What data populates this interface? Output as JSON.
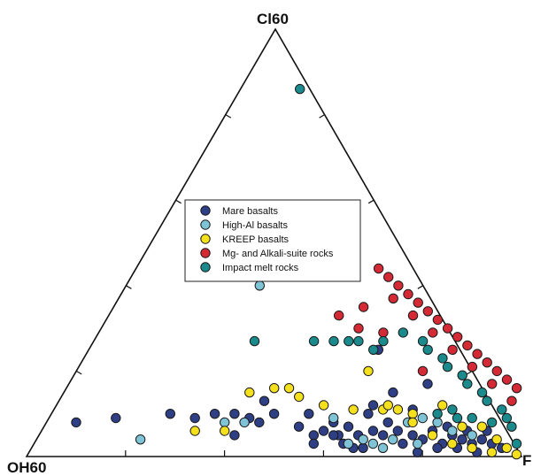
{
  "chart_data": {
    "type": "scatter",
    "subtype": "ternary",
    "vertices": {
      "top": "Cl60",
      "left": "OH60",
      "right": "F"
    },
    "legend_placement": "upper-center",
    "series": [
      {
        "name": "Mare basalts",
        "color": "#2e3f86",
        "points": [
          [
            0.1,
            0.08
          ],
          [
            0.18,
            0.09
          ],
          [
            0.29,
            0.1
          ],
          [
            0.34,
            0.09
          ],
          [
            0.38,
            0.1
          ],
          [
            0.42,
            0.1
          ],
          [
            0.45,
            0.09
          ],
          [
            0.5,
            0.1
          ],
          [
            0.42,
            0.05
          ],
          [
            0.47,
            0.08
          ],
          [
            0.48,
            0.13
          ],
          [
            0.55,
            0.07
          ],
          [
            0.58,
            0.05
          ],
          [
            0.6,
            0.06
          ],
          [
            0.62,
            0.08
          ],
          [
            0.63,
            0.05
          ],
          [
            0.65,
            0.07
          ],
          [
            0.67,
            0.05
          ],
          [
            0.7,
            0.06
          ],
          [
            0.72,
            0.05
          ],
          [
            0.73,
            0.08
          ],
          [
            0.75,
            0.06
          ],
          [
            0.78,
            0.05
          ],
          [
            0.8,
            0.04
          ],
          [
            0.82,
            0.06
          ],
          [
            0.84,
            0.03
          ],
          [
            0.86,
            0.05
          ],
          [
            0.88,
            0.04
          ],
          [
            0.9,
            0.03
          ],
          [
            0.92,
            0.04
          ],
          [
            0.94,
            0.03
          ],
          [
            0.96,
            0.02
          ],
          [
            0.76,
            0.03
          ],
          [
            0.79,
            0.01
          ],
          [
            0.83,
            0.02
          ],
          [
            0.87,
            0.02
          ],
          [
            0.91,
            0.01
          ],
          [
            0.58,
            0.03
          ],
          [
            0.64,
            0.03
          ],
          [
            0.68,
            0.02
          ],
          [
            0.7,
            0.12
          ],
          [
            0.74,
            0.15
          ],
          [
            0.78,
            0.11
          ],
          [
            0.81,
            0.17
          ],
          [
            0.71,
            0.25
          ],
          [
            0.62,
            0.05
          ],
          [
            0.66,
            0.02
          ],
          [
            0.85,
            0.07
          ],
          [
            0.89,
            0.06
          ],
          [
            0.93,
            0.06
          ],
          [
            0.69,
            0.1
          ],
          [
            0.57,
            0.1
          ]
        ]
      },
      {
        "name": "High-Al basalts",
        "color": "#7ec4d6",
        "points": [
          [
            0.23,
            0.04
          ],
          [
            0.4,
            0.08
          ],
          [
            0.44,
            0.08
          ],
          [
            0.62,
            0.09
          ],
          [
            0.65,
            0.03
          ],
          [
            0.68,
            0.04
          ],
          [
            0.7,
            0.03
          ],
          [
            0.72,
            0.02
          ],
          [
            0.74,
            0.04
          ],
          [
            0.77,
            0.08
          ],
          [
            0.8,
            0.09
          ],
          [
            0.83,
            0.08
          ],
          [
            0.86,
            0.06
          ],
          [
            0.9,
            0.05
          ],
          [
            0.47,
            0.4
          ],
          [
            0.79,
            0.03
          ]
        ]
      },
      {
        "name": "KREEP basalts",
        "color": "#f4e01c",
        "points": [
          [
            0.34,
            0.06
          ],
          [
            0.4,
            0.06
          ],
          [
            0.45,
            0.15
          ],
          [
            0.5,
            0.16
          ],
          [
            0.53,
            0.16
          ],
          [
            0.55,
            0.14
          ],
          [
            0.6,
            0.12
          ],
          [
            0.66,
            0.11
          ],
          [
            0.72,
            0.11
          ],
          [
            0.75,
            0.11
          ],
          [
            0.78,
            0.1
          ],
          [
            0.84,
            0.12
          ],
          [
            0.86,
            0.03
          ],
          [
            0.88,
            0.07
          ],
          [
            0.9,
            0.02
          ],
          [
            0.92,
            0.07
          ],
          [
            0.95,
            0.04
          ],
          [
            0.97,
            0.02
          ],
          [
            0.99,
            0.005
          ],
          [
            0.78,
            0.08
          ],
          [
            0.82,
            0.05
          ],
          [
            0.94,
            0.01
          ],
          [
            0.69,
            0.2
          ],
          [
            0.73,
            0.12
          ]
        ]
      },
      {
        "name": "Mg- and Alkali-suite rocks",
        "color": "#d42a36",
        "points": [
          [
            0.71,
            0.44
          ],
          [
            0.73,
            0.42
          ],
          [
            0.75,
            0.4
          ],
          [
            0.77,
            0.38
          ],
          [
            0.79,
            0.36
          ],
          [
            0.81,
            0.34
          ],
          [
            0.83,
            0.32
          ],
          [
            0.85,
            0.3
          ],
          [
            0.87,
            0.28
          ],
          [
            0.89,
            0.26
          ],
          [
            0.91,
            0.24
          ],
          [
            0.93,
            0.22
          ],
          [
            0.95,
            0.2
          ],
          [
            0.97,
            0.18
          ],
          [
            0.99,
            0.16
          ],
          [
            0.74,
            0.37
          ],
          [
            0.78,
            0.33
          ],
          [
            0.82,
            0.29
          ],
          [
            0.86,
            0.25
          ],
          [
            0.9,
            0.21
          ],
          [
            0.94,
            0.17
          ],
          [
            0.98,
            0.13
          ],
          [
            0.72,
            0.29
          ],
          [
            0.68,
            0.35
          ],
          [
            0.63,
            0.33
          ],
          [
            0.67,
            0.3
          ],
          [
            0.8,
            0.2
          ]
        ]
      },
      {
        "name": "Impact melt rocks",
        "color": "#1a8a8c",
        "points": [
          [
            0.55,
            0.86
          ],
          [
            0.46,
            0.27
          ],
          [
            0.58,
            0.27
          ],
          [
            0.62,
            0.27
          ],
          [
            0.65,
            0.27
          ],
          [
            0.67,
            0.27
          ],
          [
            0.7,
            0.25
          ],
          [
            0.72,
            0.27
          ],
          [
            0.76,
            0.29
          ],
          [
            0.8,
            0.27
          ],
          [
            0.84,
            0.23
          ],
          [
            0.88,
            0.19
          ],
          [
            0.92,
            0.15
          ],
          [
            0.96,
            0.11
          ],
          [
            0.98,
            0.07
          ],
          [
            0.99,
            0.03
          ],
          [
            0.81,
            0.25
          ],
          [
            0.85,
            0.21
          ],
          [
            0.89,
            0.17
          ],
          [
            0.93,
            0.13
          ],
          [
            0.97,
            0.09
          ],
          [
            0.87,
            0.09
          ],
          [
            0.83,
            0.1
          ],
          [
            0.9,
            0.09
          ],
          [
            0.94,
            0.08
          ],
          [
            0.86,
            0.11
          ]
        ]
      }
    ]
  }
}
